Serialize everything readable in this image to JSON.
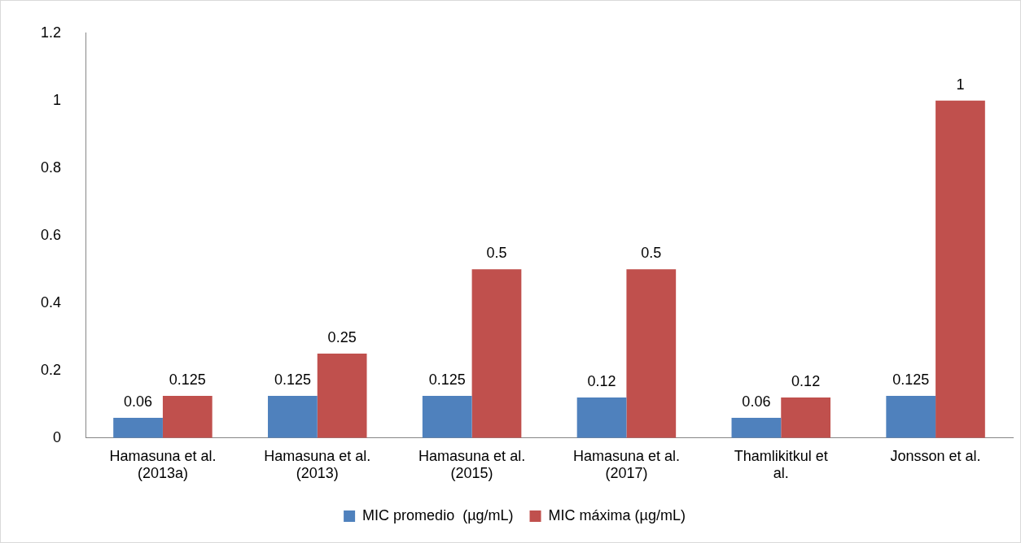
{
  "chart_data": {
    "type": "bar",
    "categories": [
      "Hamasuna et al. (2013a)",
      "Hamasuna et al. (2013)",
      "Hamasuna et al. (2015)",
      "Hamasuna et al. (2017)",
      "Thamlikitkul et al.",
      "Jonsson et al."
    ],
    "series": [
      {
        "name": "MIC promedio  (µg/mL)",
        "color": "#4f81bd",
        "values": [
          0.06,
          0.125,
          0.125,
          0.12,
          0.06,
          0.125
        ]
      },
      {
        "name": "MIC máxima (µg/mL)",
        "color": "#c0504d",
        "values": [
          0.125,
          0.25,
          0.5,
          0.5,
          0.12,
          1
        ]
      }
    ],
    "ylim": [
      0,
      1.2
    ],
    "yticks": [
      0,
      0.2,
      0.4,
      0.6,
      0.8,
      1,
      1.2
    ],
    "grid": false,
    "legend": "bottom",
    "data_labels": true
  }
}
